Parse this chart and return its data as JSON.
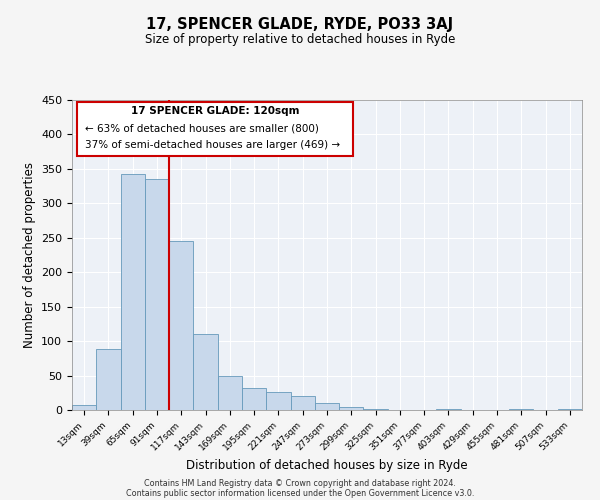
{
  "title": "17, SPENCER GLADE, RYDE, PO33 3AJ",
  "subtitle": "Size of property relative to detached houses in Ryde",
  "xlabel": "Distribution of detached houses by size in Ryde",
  "ylabel": "Number of detached properties",
  "bar_color": "#c8d8eb",
  "bar_edge_color": "#6699bb",
  "bg_color": "#edf1f7",
  "grid_color": "#ffffff",
  "annotation_box_color": "#cc0000",
  "vline_color": "#cc0000",
  "vline_x_index": 4,
  "annotation_title": "17 SPENCER GLADE: 120sqm",
  "annotation_line1": "← 63% of detached houses are smaller (800)",
  "annotation_line2": "37% of semi-detached houses are larger (469) →",
  "categories": [
    "13sqm",
    "39sqm",
    "65sqm",
    "91sqm",
    "117sqm",
    "143sqm",
    "169sqm",
    "195sqm",
    "221sqm",
    "247sqm",
    "273sqm",
    "299sqm",
    "325sqm",
    "351sqm",
    "377sqm",
    "403sqm",
    "429sqm",
    "455sqm",
    "481sqm",
    "507sqm",
    "533sqm"
  ],
  "values": [
    7,
    88,
    342,
    335,
    246,
    111,
    49,
    32,
    26,
    21,
    10,
    5,
    1,
    0,
    0,
    2,
    0,
    0,
    1,
    0,
    2
  ],
  "ylim": [
    0,
    450
  ],
  "yticks": [
    0,
    50,
    100,
    150,
    200,
    250,
    300,
    350,
    400,
    450
  ],
  "footer_line1": "Contains HM Land Registry data © Crown copyright and database right 2024.",
  "footer_line2": "Contains public sector information licensed under the Open Government Licence v3.0."
}
